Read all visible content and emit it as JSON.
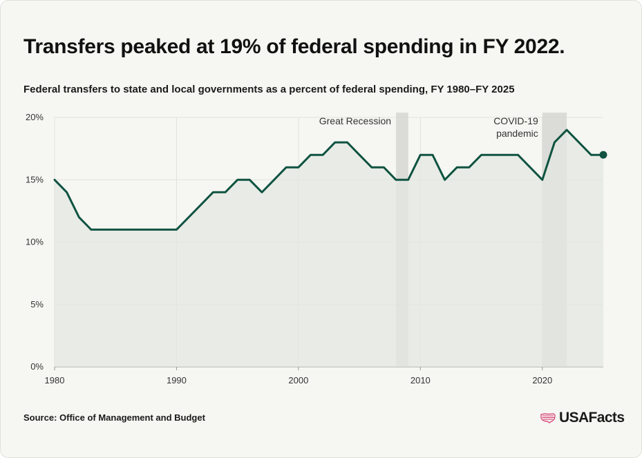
{
  "header": {
    "title": "Transfers peaked at 19% of federal spending in FY 2022.",
    "subtitle": "Federal transfers to state and local governments as a percent of federal spending, FY 1980–FY 2025"
  },
  "footer": {
    "source": "Source: Office of Management and Budget",
    "logo_text": "USAFacts",
    "logo_icon": "us-map-flag-icon"
  },
  "colors": {
    "line": "#0f5340",
    "area": "#e3e7e2",
    "shade": "#d0d2cc",
    "logo_accent": "#d6336c"
  },
  "chart_data": {
    "type": "line",
    "title": "Transfers peaked at 19% of federal spending in FY 2022.",
    "subtitle": "Federal transfers to state and local governments as a percent of federal spending, FY 1980–FY 2025",
    "xlabel": "",
    "ylabel": "",
    "xlim": [
      1980,
      2025
    ],
    "ylim": [
      0,
      20
    ],
    "x_ticks": [
      1980,
      1990,
      2000,
      2010,
      2020
    ],
    "y_ticks": [
      0,
      5,
      10,
      15,
      20
    ],
    "y_tick_labels": [
      "0%",
      "5%",
      "10%",
      "15%",
      "20%"
    ],
    "grid": true,
    "filled_area": true,
    "series": [
      {
        "x": [
          1980,
          1981,
          1982,
          1983,
          1984,
          1985,
          1986,
          1987,
          1988,
          1989,
          1990,
          1991,
          1992,
          1993,
          1994,
          1995,
          1996,
          1997,
          1998,
          1999,
          2000,
          2001,
          2002,
          2003,
          2004,
          2005,
          2006,
          2007,
          2008,
          2009,
          2010,
          2011,
          2012,
          2013,
          2014,
          2015,
          2016,
          2017,
          2018,
          2019,
          2020,
          2021,
          2022,
          2023,
          2024,
          2025
        ],
        "values": [
          15,
          14,
          12,
          11,
          11,
          11,
          11,
          11,
          11,
          11,
          11,
          12,
          13,
          14,
          14,
          15,
          15,
          14,
          15,
          16,
          16,
          17,
          17,
          18,
          18,
          17,
          16,
          16,
          15,
          15,
          17,
          17,
          15,
          16,
          16,
          17,
          17,
          17,
          17,
          16,
          15,
          18,
          19,
          18,
          17,
          17
        ]
      }
    ],
    "highlight_last_point": true,
    "annotations": [
      {
        "label": "Great Recession",
        "x_start": 2008,
        "x_end": 2009
      },
      {
        "label_lines": [
          "COVID-19",
          "pandemic"
        ],
        "x_start": 2020,
        "x_end": 2022
      }
    ]
  }
}
